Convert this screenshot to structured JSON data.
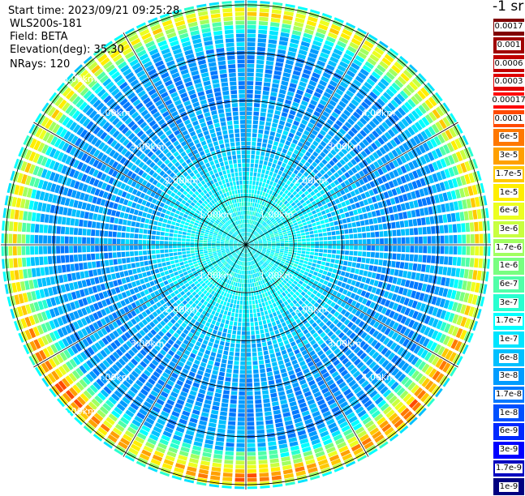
{
  "header": {
    "start_time": "Start time: 2023/09/21 09:25:28",
    "instrument": "WLS200s-181",
    "field": "Field: BETA",
    "elevation": "Elevation(deg): 35.30",
    "nrays": "NRays: 120"
  },
  "colorbar": {
    "unit_label": "-1 sr",
    "bins": [
      {
        "label": "0.0017",
        "color": "#800000"
      },
      {
        "label": "0.001",
        "color": "#a00000"
      },
      {
        "label": "0.0006",
        "color": "#c00000"
      },
      {
        "label": "0.0003",
        "color": "#e00000"
      },
      {
        "label": "0.00017",
        "color": "#ff0000"
      },
      {
        "label": "0.0001",
        "color": "#ff4a00"
      },
      {
        "label": "6e-5",
        "color": "#ff7800"
      },
      {
        "label": "3e-5",
        "color": "#ffa000"
      },
      {
        "label": "1.7e-5",
        "color": "#ffc800"
      },
      {
        "label": "1e-5",
        "color": "#ffee00"
      },
      {
        "label": "6e-6",
        "color": "#ecff20"
      },
      {
        "label": "3e-6",
        "color": "#c8ff40"
      },
      {
        "label": "1.7e-6",
        "color": "#a0ff60"
      },
      {
        "label": "1e-6",
        "color": "#78ff80"
      },
      {
        "label": "6e-7",
        "color": "#50ffa8"
      },
      {
        "label": "3e-7",
        "color": "#28ffd0"
      },
      {
        "label": "1.7e-7",
        "color": "#00ffff"
      },
      {
        "label": "1e-7",
        "color": "#00e4ff"
      },
      {
        "label": "6e-8",
        "color": "#00c0ff"
      },
      {
        "label": "3e-8",
        "color": "#009cff"
      },
      {
        "label": "1.7e-8",
        "color": "#0078ff"
      },
      {
        "label": "1e-8",
        "color": "#0050ff"
      },
      {
        "label": "6e-9",
        "color": "#0028ff"
      },
      {
        "label": "3e-9",
        "color": "#0000ff"
      },
      {
        "label": "1.7e-9",
        "color": "#0000c0"
      },
      {
        "label": "1e-9",
        "color": "#000080"
      }
    ]
  },
  "chart_data": {
    "type": "heatmap",
    "projection": "polar PPI",
    "field": "BETA",
    "elevation_deg": 35.3,
    "n_rays": 120,
    "range_rings_km": [
      1,
      2,
      3,
      4,
      5
    ],
    "ring_labels": [
      "1.00km",
      "2.00km",
      "3.00km",
      "4.00km",
      "5.00km"
    ],
    "max_range_km": 5.1,
    "spoke_count": 12,
    "colormap": "jet",
    "color_scale": "log",
    "value_range": [
      1e-09,
      0.0017
    ],
    "radial_profile": [
      {
        "range_km": 0.0,
        "value": 1.7e-07
      },
      {
        "range_km": 1.0,
        "value": 1.7e-07
      },
      {
        "range_km": 1.5,
        "value": 1e-07
      },
      {
        "range_km": 2.0,
        "value": 6e-08
      },
      {
        "range_km": 3.0,
        "value": 3e-08
      },
      {
        "range_km": 4.0,
        "value": 3e-08
      },
      {
        "range_km": 4.4,
        "value": 6e-08
      },
      {
        "range_km": 4.65,
        "value": 1e-06
      },
      {
        "range_km": 4.85,
        "value": 1.7e-05
      },
      {
        "range_km": 5.0,
        "value": 1e-06
      },
      {
        "range_km": 5.1,
        "value": 6e-08
      }
    ],
    "azimuth_notes": [
      {
        "azimuth_deg": 135,
        "value": 6e-05
      },
      {
        "azimuth_deg": 180,
        "value": 6e-05
      },
      {
        "azimuth_deg": 230,
        "value": 6e-05
      }
    ]
  }
}
